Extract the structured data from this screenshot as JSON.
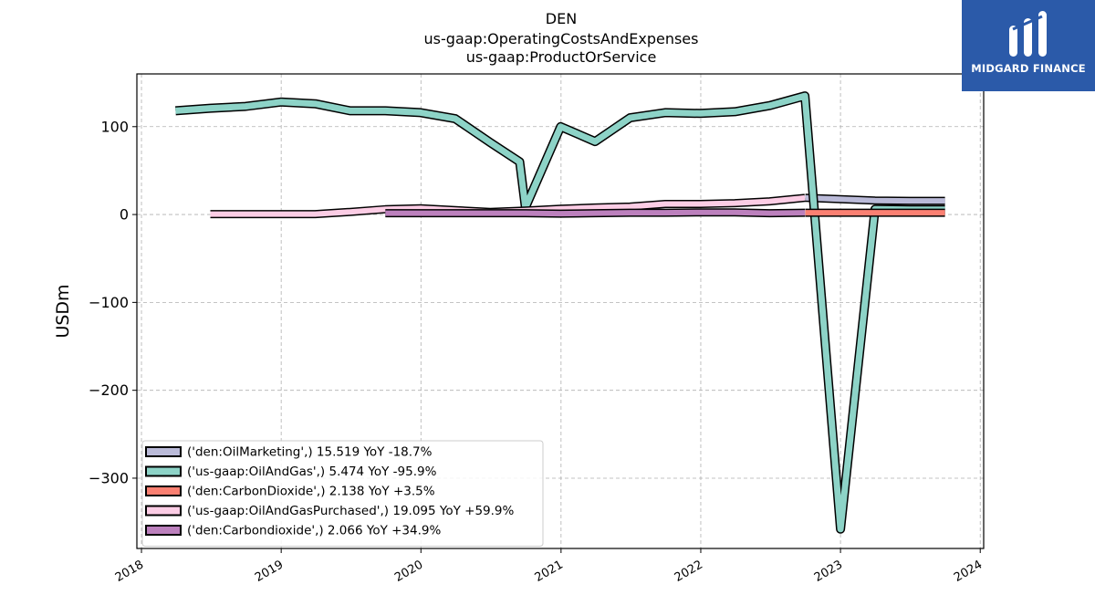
{
  "chart_data": {
    "type": "line",
    "title_lines": [
      "DEN",
      "us-gaap:OperatingCostsAndExpenses",
      "us-gaap:ProductOrService"
    ],
    "ylabel": "USDm",
    "xlabel": "",
    "ylim": [
      -380,
      160
    ],
    "xlim": [
      "2017-12-20",
      "2024-01-10"
    ],
    "yticks": [
      {
        "value": 100,
        "label": "100"
      },
      {
        "value": 0,
        "label": "0"
      },
      {
        "value": -100,
        "label": "−100"
      },
      {
        "value": -200,
        "label": "−200"
      },
      {
        "value": -300,
        "label": "−300"
      }
    ],
    "xticks": [
      {
        "value": "2018-01-01",
        "label": "2018"
      },
      {
        "value": "2019-01-01",
        "label": "2019"
      },
      {
        "value": "2020-01-01",
        "label": "2020"
      },
      {
        "value": "2021-01-01",
        "label": "2021"
      },
      {
        "value": "2022-01-01",
        "label": "2022"
      },
      {
        "value": "2023-01-01",
        "label": "2023"
      },
      {
        "value": "2024-01-01",
        "label": "2024"
      }
    ],
    "grid": true,
    "legend_position": "lower-left",
    "series": [
      {
        "legend": "('den:OilMarketing',) 15.519 YoY -18.7%",
        "color": "#babad8",
        "width": 6,
        "points": [
          [
            "2022-10-01",
            19.1
          ],
          [
            "2023-01-01",
            17.5
          ],
          [
            "2023-04-01",
            16.0
          ],
          [
            "2023-07-01",
            15.5
          ],
          [
            "2023-10-01",
            15.5
          ]
        ]
      },
      {
        "legend": "('us-gaap:OilAndGas',) 5.474 YoY -95.9%",
        "color": "#8dd3c7",
        "width": 7,
        "points": [
          [
            "2018-03-31",
            118
          ],
          [
            "2018-06-30",
            121
          ],
          [
            "2018-09-30",
            123
          ],
          [
            "2018-12-31",
            128
          ],
          [
            "2019-03-31",
            126
          ],
          [
            "2019-06-30",
            118
          ],
          [
            "2019-09-30",
            118
          ],
          [
            "2019-12-31",
            116
          ],
          [
            "2020-03-31",
            109
          ],
          [
            "2020-06-30",
            82
          ],
          [
            "2020-09-15",
            60
          ],
          [
            "2020-09-30",
            8
          ],
          [
            "2020-12-31",
            100
          ],
          [
            "2021-03-31",
            83
          ],
          [
            "2021-06-30",
            110
          ],
          [
            "2021-09-30",
            116
          ],
          [
            "2021-12-31",
            115
          ],
          [
            "2022-03-31",
            117
          ],
          [
            "2022-06-30",
            124
          ],
          [
            "2022-09-30",
            135
          ],
          [
            "2023-01-01",
            -358
          ],
          [
            "2023-04-01",
            6
          ],
          [
            "2023-07-01",
            5.5
          ],
          [
            "2023-10-01",
            5.5
          ]
        ]
      },
      {
        "legend": "('den:CarbonDioxide',) 2.138 YoY +3.5%",
        "color": "#fb8072",
        "width": 6,
        "points": [
          [
            "2022-10-01",
            2.0
          ],
          [
            "2023-01-01",
            2.0
          ],
          [
            "2023-04-01",
            2.0
          ],
          [
            "2023-07-01",
            2.1
          ],
          [
            "2023-10-01",
            2.1
          ]
        ]
      },
      {
        "legend": "('us-gaap:OilAndGasPurchased',) 19.095 YoY +59.9%",
        "color": "#fccde5",
        "width": 6,
        "points": [
          [
            "2018-06-30",
            0.5
          ],
          [
            "2018-09-30",
            0.5
          ],
          [
            "2018-12-31",
            0.5
          ],
          [
            "2019-03-31",
            0.5
          ],
          [
            "2019-06-30",
            3
          ],
          [
            "2019-09-30",
            6
          ],
          [
            "2019-12-31",
            7
          ],
          [
            "2020-03-31",
            5
          ],
          [
            "2020-06-30",
            3
          ],
          [
            "2020-09-30",
            4.5
          ],
          [
            "2020-12-31",
            6.5
          ],
          [
            "2021-03-31",
            8
          ],
          [
            "2021-06-30",
            9
          ],
          [
            "2021-09-30",
            12
          ],
          [
            "2021-12-31",
            12
          ],
          [
            "2022-03-31",
            13
          ],
          [
            "2022-06-30",
            15
          ],
          [
            "2022-09-30",
            19
          ]
        ]
      },
      {
        "legend": "('den:Carbondioxide',) 2.066 YoY +34.9%",
        "color": "#bc80bd",
        "width": 6,
        "points": [
          [
            "2019-09-30",
            1.5
          ],
          [
            "2019-12-31",
            1.5
          ],
          [
            "2020-03-31",
            1.5
          ],
          [
            "2020-06-30",
            1.5
          ],
          [
            "2020-09-30",
            1.5
          ],
          [
            "2020-12-31",
            1.0
          ],
          [
            "2021-03-31",
            1.5
          ],
          [
            "2021-06-30",
            2.0
          ],
          [
            "2021-09-30",
            2.0
          ],
          [
            "2021-12-31",
            2.5
          ],
          [
            "2022-03-31",
            2.5
          ],
          [
            "2022-06-30",
            1.5
          ],
          [
            "2022-09-30",
            2.0
          ]
        ]
      }
    ]
  },
  "logo": {
    "text": "MIDGARD FINANCE",
    "color": "#2b5aa9"
  }
}
